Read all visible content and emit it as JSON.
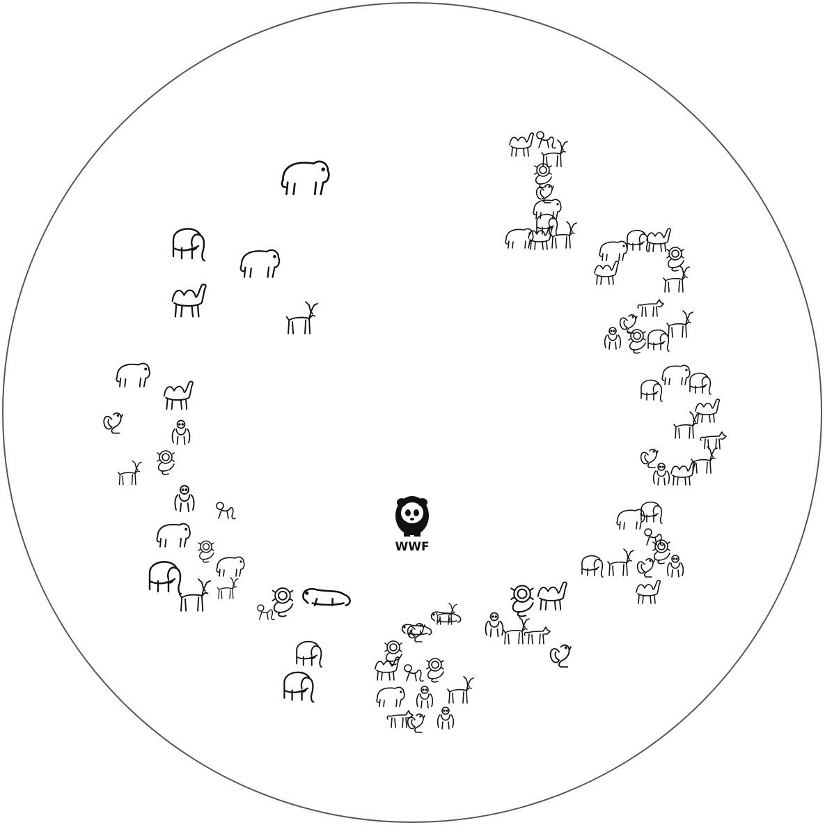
{
  "colors": {
    "ink": "#111111",
    "ring": "#555555",
    "background": "#ffffff"
  },
  "logo": {
    "text": "WWF",
    "mark": "panda-logo"
  },
  "numbers": [
    {
      "value": "1",
      "animals": [
        "camel",
        "monkey",
        "deer",
        "lion",
        "squirrel",
        "bear",
        "elephant",
        "bear",
        "camel",
        "deer"
      ]
    },
    {
      "value": "2",
      "animals": [
        "bear",
        "elephant",
        "camel",
        "lion",
        "deer",
        "wolf",
        "squirrel",
        "gorilla",
        "lion",
        "elephant",
        "deer",
        "camel"
      ]
    },
    {
      "value": "3",
      "animals": [
        "elephant",
        "bear",
        "elephant",
        "camel",
        "deer",
        "wolf",
        "squirrel",
        "gorilla",
        "camel",
        "deer"
      ]
    },
    {
      "value": "5",
      "animals": [
        "bear",
        "elephant",
        "monkey",
        "elephant",
        "deer",
        "squirrel",
        "gorilla",
        "camel",
        "lion"
      ]
    },
    {
      "value": "6",
      "animals": [
        "lion",
        "monkey",
        "bear",
        "squirrel",
        "otter",
        "lion",
        "gorilla",
        "squirrel",
        "wolf",
        "deer",
        "camel",
        "gorilla"
      ]
    }
  ],
  "scattered_animals": [
    "bear",
    "elephant",
    "bear",
    "camel",
    "deer",
    "bear",
    "camel",
    "squirrel",
    "gorilla",
    "lion",
    "deer",
    "gorilla",
    "monkey",
    "bear",
    "lion",
    "elephant",
    "bear",
    "deer",
    "deer",
    "lion",
    "monkey",
    "otter",
    "elephant",
    "elephant",
    "deer",
    "lion",
    "otter",
    "camel",
    "gorilla",
    "deer",
    "wolf",
    "squirrel"
  ]
}
